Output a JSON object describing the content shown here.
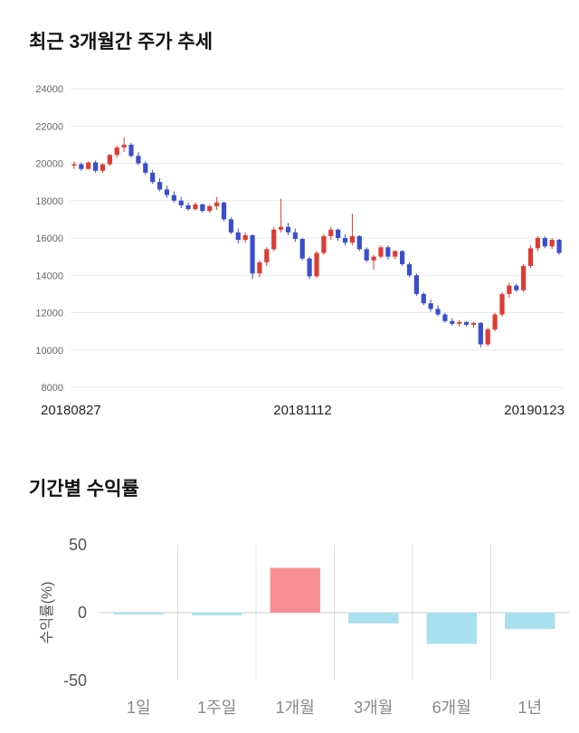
{
  "chart_data": [
    {
      "type": "candlestick",
      "title": "최근 3개월간 주가 추세",
      "ylim": [
        8000,
        24000
      ],
      "y_ticks": [
        8000,
        10000,
        12000,
        14000,
        16000,
        18000,
        20000,
        22000,
        24000
      ],
      "x_labels": [
        "20180827",
        "20181112",
        "20190123"
      ],
      "up_color": "#dd3c34",
      "down_color": "#3a4ecb",
      "grid_color": "#e9e9e9",
      "candles": [
        [
          19900,
          20100,
          19700,
          19950
        ],
        [
          19950,
          20050,
          19600,
          19700
        ],
        [
          19700,
          20100,
          19650,
          20050
        ],
        [
          20050,
          20150,
          19500,
          19600
        ],
        [
          19600,
          20000,
          19500,
          19950
        ],
        [
          19950,
          20500,
          19850,
          20450
        ],
        [
          20450,
          20950,
          20300,
          20850
        ],
        [
          20850,
          21400,
          20600,
          21000
        ],
        [
          21000,
          21100,
          20300,
          20400
        ],
        [
          20400,
          20600,
          19900,
          20000
        ],
        [
          20000,
          20100,
          19400,
          19500
        ],
        [
          19500,
          19650,
          18900,
          19000
        ],
        [
          19000,
          19200,
          18500,
          18600
        ],
        [
          18600,
          18800,
          18150,
          18300
        ],
        [
          18300,
          18500,
          17900,
          18000
        ],
        [
          18000,
          18200,
          17600,
          17750
        ],
        [
          17750,
          17900,
          17450,
          17550
        ],
        [
          17550,
          17900,
          17450,
          17800
        ],
        [
          17800,
          17850,
          17350,
          17450
        ],
        [
          17450,
          17800,
          17350,
          17700
        ],
        [
          17700,
          18200,
          17500,
          17900
        ],
        [
          17900,
          17950,
          16900,
          17000
        ],
        [
          17000,
          17100,
          16200,
          16300
        ],
        [
          16300,
          16500,
          15700,
          15900
        ],
        [
          15900,
          16300,
          15750,
          16150
        ],
        [
          16150,
          16200,
          13800,
          14100
        ],
        [
          14100,
          14800,
          13900,
          14700
        ],
        [
          14700,
          15500,
          14500,
          15400
        ],
        [
          15400,
          16600,
          15300,
          16450
        ],
        [
          16450,
          18100,
          16300,
          16600
        ],
        [
          16600,
          16800,
          16150,
          16300
        ],
        [
          16300,
          16500,
          15800,
          15950
        ],
        [
          15950,
          16000,
          14800,
          14900
        ],
        [
          14900,
          15000,
          13800,
          13950
        ],
        [
          13950,
          15300,
          13850,
          15200
        ],
        [
          15200,
          16200,
          15100,
          16100
        ],
        [
          16100,
          16600,
          15900,
          16450
        ],
        [
          16450,
          16500,
          15850,
          16000
        ],
        [
          16000,
          16200,
          15600,
          15750
        ],
        [
          15750,
          17300,
          15600,
          16100
        ],
        [
          16100,
          16150,
          15300,
          15400
        ],
        [
          15400,
          15500,
          14700,
          14800
        ],
        [
          14800,
          15100,
          14300,
          15000
        ],
        [
          15000,
          15600,
          14900,
          15500
        ],
        [
          15500,
          15600,
          14850,
          15000
        ],
        [
          15000,
          15350,
          14850,
          15300
        ],
        [
          15300,
          15350,
          14500,
          14600
        ],
        [
          14600,
          14700,
          13900,
          14000
        ],
        [
          14000,
          14100,
          12900,
          13000
        ],
        [
          13000,
          13100,
          12400,
          12500
        ],
        [
          12500,
          12700,
          12050,
          12200
        ],
        [
          12200,
          12400,
          11800,
          11900
        ],
        [
          11900,
          12000,
          11450,
          11550
        ],
        [
          11550,
          11700,
          11300,
          11400
        ],
        [
          11400,
          11600,
          11250,
          11500
        ],
        [
          11500,
          11550,
          11250,
          11350
        ],
        [
          11350,
          11500,
          11200,
          11450
        ],
        [
          11450,
          11500,
          10150,
          10300
        ],
        [
          10300,
          11200,
          10200,
          11100
        ],
        [
          11100,
          12000,
          11000,
          11900
        ],
        [
          11900,
          13100,
          11800,
          13000
        ],
        [
          13000,
          13600,
          12800,
          13450
        ],
        [
          13450,
          13550,
          13100,
          13200
        ],
        [
          13200,
          14600,
          13100,
          14500
        ],
        [
          14500,
          15600,
          14400,
          15450
        ],
        [
          15450,
          16100,
          15300,
          16000
        ],
        [
          16000,
          16100,
          15450,
          15550
        ],
        [
          15550,
          16000,
          15400,
          15900
        ],
        [
          15900,
          15950,
          15100,
          15200
        ]
      ]
    },
    {
      "type": "bar",
      "title": "기간별 수익률",
      "ylabel": "수익률(%)",
      "categories": [
        "1일",
        "1주일",
        "1개월",
        "3개월",
        "6개월",
        "1년"
      ],
      "values": [
        -1,
        -2,
        33,
        -8,
        -23,
        -12
      ],
      "ylim": [
        -50,
        50
      ],
      "y_ticks": [
        50,
        0,
        -50
      ],
      "positive_color": "#f78f93",
      "negative_color": "#a9e0ef",
      "grid_color": "#dddddd",
      "zero_line_color": "#cccccc"
    }
  ]
}
